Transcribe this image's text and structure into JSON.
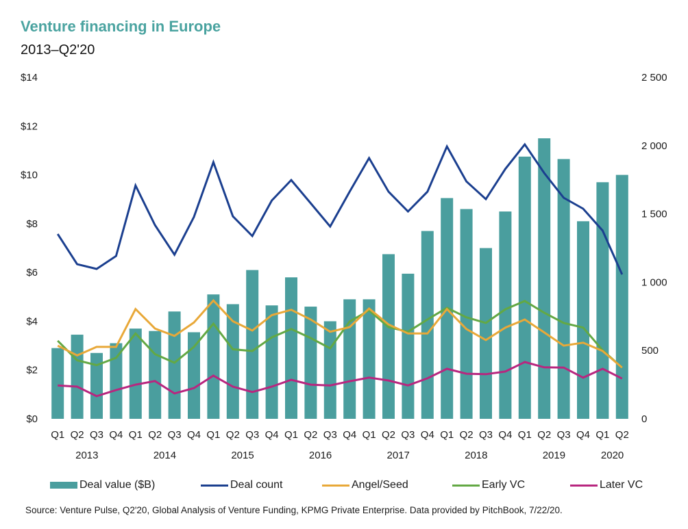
{
  "header": {
    "title": "Venture financing in Europe",
    "subtitle": "2013–Q2'20"
  },
  "colors": {
    "title": "#4aa3a0",
    "deal_value": "#4a9e9e",
    "deal_count": "#1b3f8f",
    "angel_seed": "#e8a838",
    "early_vc": "#63a844",
    "later_vc": "#b8267f"
  },
  "chart_data": {
    "type": "bar",
    "title": "Venture financing in Europe",
    "subtitle": "2013–Q2'20",
    "categories": [
      "Q1'13",
      "Q2'13",
      "Q3'13",
      "Q4'13",
      "Q1'14",
      "Q2'14",
      "Q3'14",
      "Q4'14",
      "Q1'15",
      "Q2'15",
      "Q3'15",
      "Q4'15",
      "Q1'16",
      "Q2'16",
      "Q3'16",
      "Q4'16",
      "Q1'17",
      "Q2'17",
      "Q3'17",
      "Q4'17",
      "Q1'18",
      "Q2'18",
      "Q3'18",
      "Q4'18",
      "Q1'19",
      "Q2'19",
      "Q3'19",
      "Q4'19",
      "Q1'20",
      "Q2'20"
    ],
    "quarter_labels": [
      "Q1",
      "Q2",
      "Q3",
      "Q4",
      "Q1",
      "Q2",
      "Q3",
      "Q4",
      "Q1",
      "Q2",
      "Q3",
      "Q4",
      "Q1",
      "Q2",
      "Q3",
      "Q4",
      "Q1",
      "Q2",
      "Q3",
      "Q4",
      "Q1",
      "Q2",
      "Q3",
      "Q4",
      "Q1",
      "Q2",
      "Q3",
      "Q4",
      "Q1",
      "Q2"
    ],
    "year_labels": [
      {
        "label": "2013",
        "start": 0,
        "count": 4
      },
      {
        "label": "2014",
        "start": 4,
        "count": 4
      },
      {
        "label": "2015",
        "start": 8,
        "count": 4
      },
      {
        "label": "2016",
        "start": 12,
        "count": 4
      },
      {
        "label": "2017",
        "start": 16,
        "count": 4
      },
      {
        "label": "2018",
        "start": 20,
        "count": 4
      },
      {
        "label": "2019",
        "start": 24,
        "count": 4
      },
      {
        "label": "2020",
        "start": 28,
        "count": 2
      }
    ],
    "series": [
      {
        "name": "Deal value ($B)",
        "type": "bar",
        "axis": "left",
        "color_key": "deal_value",
        "values": [
          2.9,
          3.45,
          2.7,
          3.1,
          3.7,
          3.6,
          4.4,
          3.55,
          5.1,
          4.7,
          6.1,
          4.65,
          5.8,
          4.6,
          4.0,
          4.9,
          4.9,
          6.75,
          5.95,
          7.7,
          9.05,
          8.6,
          7.0,
          8.5,
          10.75,
          11.5,
          10.65,
          8.1,
          9.7,
          10.0
        ]
      },
      {
        "name": "Deal count",
        "type": "line",
        "axis": "right",
        "color_key": "deal_count",
        "values": [
          1353,
          1132,
          1097,
          1192,
          1708,
          1418,
          1202,
          1478,
          1879,
          1483,
          1338,
          1598,
          1748,
          1578,
          1408,
          1663,
          1909,
          1663,
          1518,
          1663,
          1994,
          1738,
          1608,
          1829,
          2009,
          1799,
          1618,
          1538,
          1378,
          1057
        ]
      },
      {
        "name": "Angel/Seed",
        "type": "line",
        "axis": "left",
        "color_key": "angel_seed",
        "values": [
          3.0,
          2.6,
          2.95,
          2.95,
          4.5,
          3.7,
          3.4,
          3.95,
          4.85,
          4.0,
          3.62,
          4.25,
          4.47,
          4.07,
          3.57,
          3.76,
          4.52,
          3.87,
          3.5,
          3.5,
          4.5,
          3.68,
          3.23,
          3.74,
          4.07,
          3.54,
          3.0,
          3.12,
          2.78,
          2.1
        ]
      },
      {
        "name": "Early VC",
        "type": "line",
        "axis": "left",
        "color_key": "early_vc",
        "values": [
          3.2,
          2.4,
          2.2,
          2.5,
          3.5,
          2.65,
          2.3,
          2.95,
          3.9,
          2.85,
          2.78,
          3.34,
          3.68,
          3.31,
          2.89,
          3.99,
          4.44,
          3.76,
          3.57,
          4.07,
          4.55,
          4.16,
          3.93,
          4.49,
          4.83,
          4.35,
          3.93,
          3.74,
          2.81,
          2.1
        ]
      },
      {
        "name": "Later VC",
        "type": "line",
        "axis": "left",
        "color_key": "later_vc",
        "values": [
          1.37,
          1.32,
          0.93,
          1.18,
          1.4,
          1.55,
          1.04,
          1.26,
          1.77,
          1.32,
          1.1,
          1.32,
          1.6,
          1.4,
          1.37,
          1.54,
          1.69,
          1.57,
          1.37,
          1.66,
          2.05,
          1.85,
          1.83,
          1.94,
          2.33,
          2.11,
          2.1,
          1.69,
          2.05,
          1.65
        ]
      }
    ],
    "y_left": {
      "label": "",
      "range": [
        0,
        14
      ],
      "ticks": [
        0,
        2,
        4,
        6,
        8,
        10,
        12,
        14
      ],
      "tick_labels": [
        "$0",
        "$2",
        "$4",
        "$6",
        "$8",
        "$10",
        "$12",
        "$14"
      ]
    },
    "y_right": {
      "label": "",
      "range": [
        0,
        2500
      ],
      "ticks": [
        0,
        500,
        1000,
        1500,
        2000,
        2500
      ],
      "tick_labels": [
        "0",
        "500",
        "1 000",
        "1 500",
        "2 000",
        "2 500"
      ]
    },
    "xlabel": "",
    "grid": false,
    "legend_position": "bottom"
  },
  "legend": {
    "items": [
      {
        "label": "Deal value ($B)",
        "kind": "bar",
        "color_key": "deal_value"
      },
      {
        "label": "Deal count",
        "kind": "line",
        "color_key": "deal_count"
      },
      {
        "label": "Angel/Seed",
        "kind": "line",
        "color_key": "angel_seed"
      },
      {
        "label": "Early VC",
        "kind": "line",
        "color_key": "early_vc"
      },
      {
        "label": "Later VC",
        "kind": "line",
        "color_key": "later_vc"
      }
    ]
  },
  "footer": {
    "source": "Source: Venture Pulse, Q2'20, Global Analysis of Venture Funding, KPMG Private Enterprise. Data provided by PitchBook, 7/22/20."
  }
}
